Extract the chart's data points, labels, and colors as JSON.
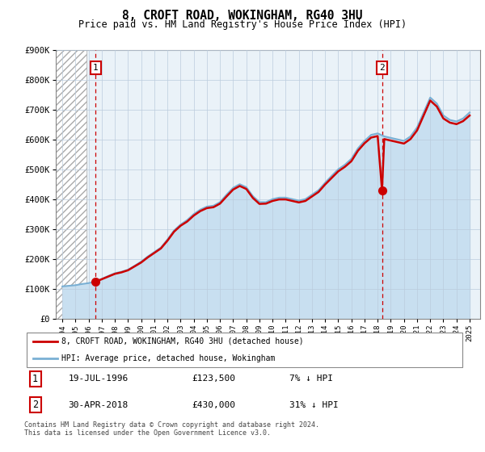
{
  "title": "8, CROFT ROAD, WOKINGHAM, RG40 3HU",
  "subtitle": "Price paid vs. HM Land Registry's House Price Index (HPI)",
  "ylim": [
    0,
    900000
  ],
  "yticks": [
    0,
    100000,
    200000,
    300000,
    400000,
    500000,
    600000,
    700000,
    800000,
    900000
  ],
  "ytick_labels": [
    "£0",
    "£100K",
    "£200K",
    "£300K",
    "£400K",
    "£500K",
    "£600K",
    "£700K",
    "£800K",
    "£900K"
  ],
  "xlim_start": 1993.5,
  "xlim_end": 2025.8,
  "xticks": [
    1994,
    1995,
    1996,
    1997,
    1998,
    1999,
    2000,
    2001,
    2002,
    2003,
    2004,
    2005,
    2006,
    2007,
    2008,
    2009,
    2010,
    2011,
    2012,
    2013,
    2014,
    2015,
    2016,
    2017,
    2018,
    2019,
    2020,
    2021,
    2022,
    2023,
    2024,
    2025
  ],
  "transaction1_x": 1996.54,
  "transaction1_y": 123500,
  "transaction1_label": "1",
  "transaction1_date": "19-JUL-1996",
  "transaction1_price": "£123,500",
  "transaction1_hpi": "7% ↓ HPI",
  "transaction2_x": 2018.33,
  "transaction2_y": 430000,
  "transaction2_label": "2",
  "transaction2_date": "30-APR-2018",
  "transaction2_price": "£430,000",
  "transaction2_hpi": "31% ↓ HPI",
  "red_line_color": "#cc0000",
  "blue_line_color": "#7ab0d4",
  "blue_fill_color": "#c8dff0",
  "dashed_line_color": "#cc0000",
  "grid_color": "#bbccdd",
  "legend1_text": "8, CROFT ROAD, WOKINGHAM, RG40 3HU (detached house)",
  "legend2_text": "HPI: Average price, detached house, Wokingham",
  "footer": "Contains HM Land Registry data © Crown copyright and database right 2024.\nThis data is licensed under the Open Government Licence v3.0.",
  "hpi_x": [
    1994.0,
    1994.5,
    1995.0,
    1995.5,
    1996.0,
    1996.5,
    1997.0,
    1997.5,
    1998.0,
    1998.5,
    1999.0,
    1999.5,
    2000.0,
    2000.5,
    2001.0,
    2001.5,
    2002.0,
    2002.5,
    2003.0,
    2003.5,
    2004.0,
    2004.5,
    2005.0,
    2005.5,
    2006.0,
    2006.5,
    2007.0,
    2007.5,
    2008.0,
    2008.5,
    2009.0,
    2009.5,
    2010.0,
    2010.5,
    2011.0,
    2011.5,
    2012.0,
    2012.5,
    2013.0,
    2013.5,
    2014.0,
    2014.5,
    2015.0,
    2015.5,
    2016.0,
    2016.5,
    2017.0,
    2017.5,
    2018.0,
    2018.5,
    2019.0,
    2019.5,
    2020.0,
    2020.5,
    2021.0,
    2021.5,
    2022.0,
    2022.5,
    2023.0,
    2023.5,
    2024.0,
    2024.5,
    2025.0
  ],
  "hpi_y": [
    108000,
    110000,
    112000,
    116000,
    119000,
    124000,
    133000,
    143000,
    152000,
    157000,
    164000,
    177000,
    191000,
    208000,
    223000,
    238000,
    265000,
    295000,
    315000,
    330000,
    350000,
    365000,
    375000,
    378000,
    390000,
    415000,
    438000,
    450000,
    440000,
    410000,
    390000,
    390000,
    400000,
    405000,
    405000,
    400000,
    395000,
    400000,
    415000,
    430000,
    455000,
    478000,
    500000,
    515000,
    535000,
    570000,
    595000,
    615000,
    620000,
    610000,
    605000,
    600000,
    595000,
    610000,
    640000,
    690000,
    740000,
    720000,
    680000,
    665000,
    660000,
    670000,
    690000
  ],
  "red_x": [
    1996.54,
    1997.0,
    1997.5,
    1998.0,
    1998.5,
    1999.0,
    1999.5,
    2000.0,
    2000.5,
    2001.0,
    2001.5,
    2002.0,
    2002.5,
    2003.0,
    2003.5,
    2004.0,
    2004.5,
    2005.0,
    2005.5,
    2006.0,
    2006.5,
    2007.0,
    2007.5,
    2008.0,
    2008.5,
    2009.0,
    2009.5,
    2010.0,
    2010.5,
    2011.0,
    2011.5,
    2012.0,
    2012.5,
    2013.0,
    2013.5,
    2014.0,
    2014.5,
    2015.0,
    2015.5,
    2016.0,
    2016.5,
    2017.0,
    2017.5,
    2018.0,
    2018.33,
    2018.5,
    2019.0,
    2019.5,
    2020.0,
    2020.5,
    2021.0,
    2021.5,
    2022.0,
    2022.5,
    2023.0,
    2023.5,
    2024.0,
    2024.5,
    2025.0
  ],
  "red_y": [
    123500,
    132000,
    141000,
    150000,
    155000,
    162000,
    175000,
    188000,
    205000,
    220000,
    235000,
    261000,
    291000,
    311000,
    325000,
    345000,
    360000,
    370000,
    373000,
    385000,
    409000,
    432000,
    444000,
    434000,
    404000,
    384000,
    385000,
    394000,
    399000,
    399000,
    394000,
    389000,
    394000,
    409000,
    424000,
    449000,
    471000,
    493000,
    508000,
    527000,
    562000,
    587000,
    606000,
    611000,
    430000,
    601000,
    596000,
    591000,
    586000,
    601000,
    630000,
    680000,
    730000,
    710000,
    670000,
    656000,
    651000,
    661000,
    680000
  ]
}
